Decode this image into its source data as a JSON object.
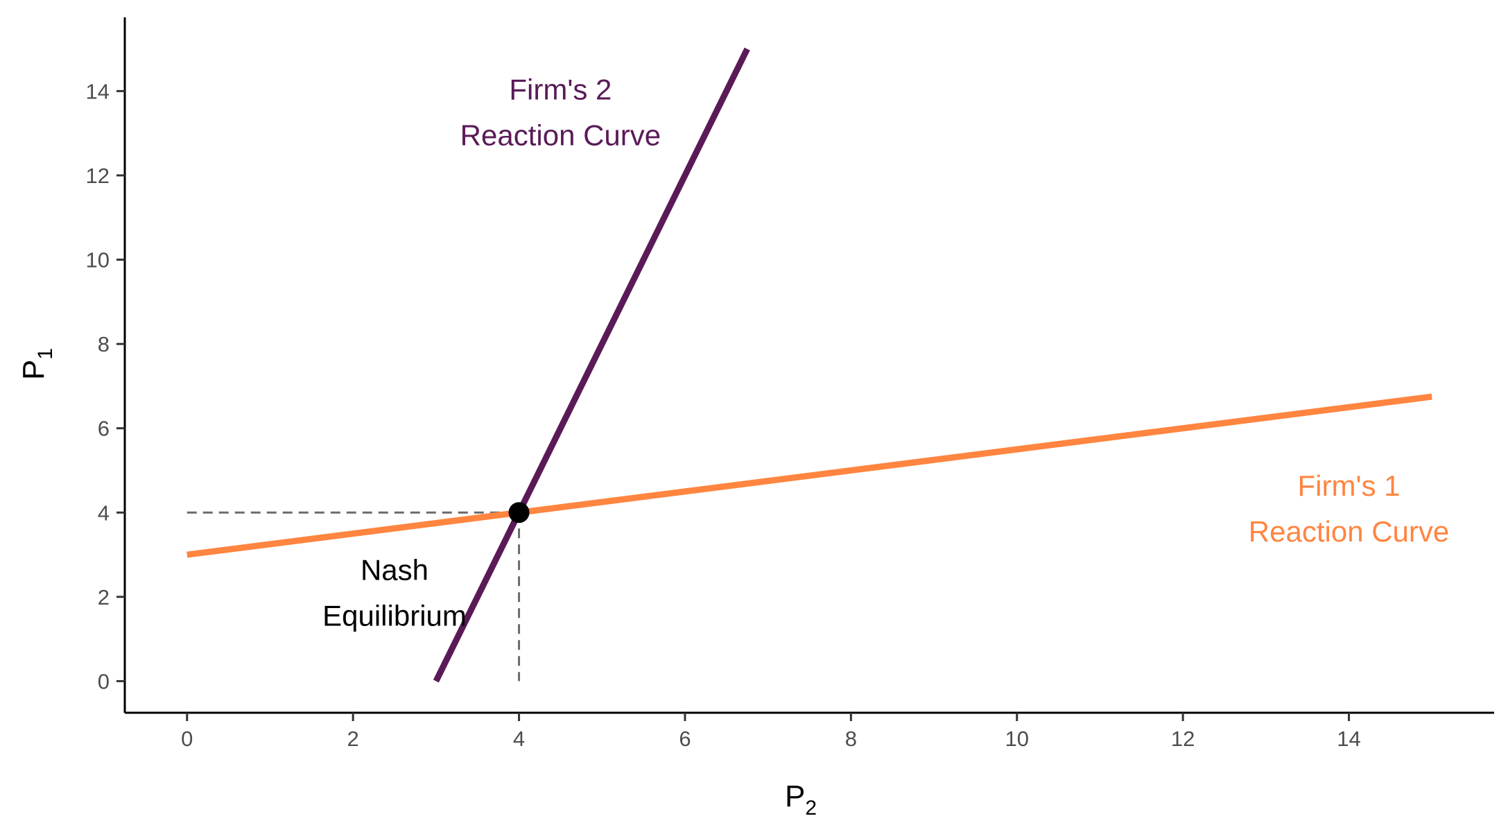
{
  "chart_data": {
    "type": "line",
    "title": "",
    "xlabel": {
      "main": "P",
      "sub": "2"
    },
    "ylabel": {
      "main": "P",
      "sub": "1"
    },
    "xlim": [
      -0.75,
      15.75
    ],
    "ylim": [
      -0.75,
      15.75
    ],
    "x_ticks": [
      0,
      2,
      4,
      6,
      8,
      10,
      12,
      14
    ],
    "y_ticks": [
      0,
      2,
      4,
      6,
      8,
      10,
      12,
      14
    ],
    "grid": false,
    "series": [
      {
        "name": "Firm's 2 Reaction Curve",
        "color": "#5a1a57",
        "x": [
          3,
          6.75
        ],
        "y": [
          0,
          15
        ]
      },
      {
        "name": "Firm's 1 Reaction Curve",
        "color": "#ff8540",
        "x": [
          0,
          15
        ],
        "y": [
          3,
          6.75
        ]
      }
    ],
    "equilibrium": {
      "x": 4,
      "y": 4,
      "color": "#000000"
    },
    "guide_color": "#6b6b6b",
    "annotations": [
      {
        "lines": [
          "Firm's 2",
          "Reaction Curve"
        ],
        "x": 4.5,
        "y": 13.8,
        "color": "#5a1a57"
      },
      {
        "lines": [
          "Firm's 1",
          "Reaction Curve"
        ],
        "x": 14.0,
        "y": 4.4,
        "color": "#ff8540"
      },
      {
        "lines": [
          "Nash",
          "Equilibrium"
        ],
        "x": 2.5,
        "y": 2.4,
        "color": "#000000"
      }
    ]
  }
}
